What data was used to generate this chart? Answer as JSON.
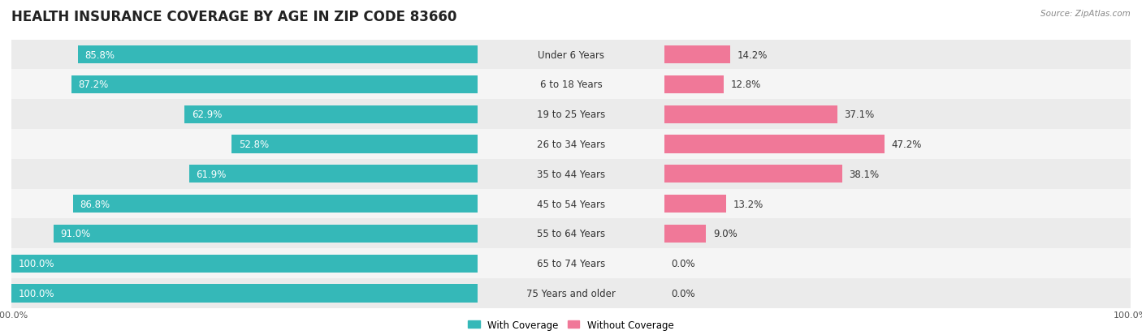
{
  "title": "HEALTH INSURANCE COVERAGE BY AGE IN ZIP CODE 83660",
  "source": "Source: ZipAtlas.com",
  "categories": [
    "Under 6 Years",
    "6 to 18 Years",
    "19 to 25 Years",
    "26 to 34 Years",
    "35 to 44 Years",
    "45 to 54 Years",
    "55 to 64 Years",
    "65 to 74 Years",
    "75 Years and older"
  ],
  "with_coverage": [
    85.8,
    87.2,
    62.9,
    52.8,
    61.9,
    86.8,
    91.0,
    100.0,
    100.0
  ],
  "without_coverage": [
    14.2,
    12.8,
    37.1,
    47.2,
    38.1,
    13.2,
    9.0,
    0.0,
    0.0
  ],
  "color_with": "#35b8b8",
  "color_without": "#f07898",
  "bg_colors": [
    "#ebebeb",
    "#f5f5f5"
  ],
  "title_fontsize": 12,
  "label_fontsize": 8.5,
  "bar_height": 0.6
}
